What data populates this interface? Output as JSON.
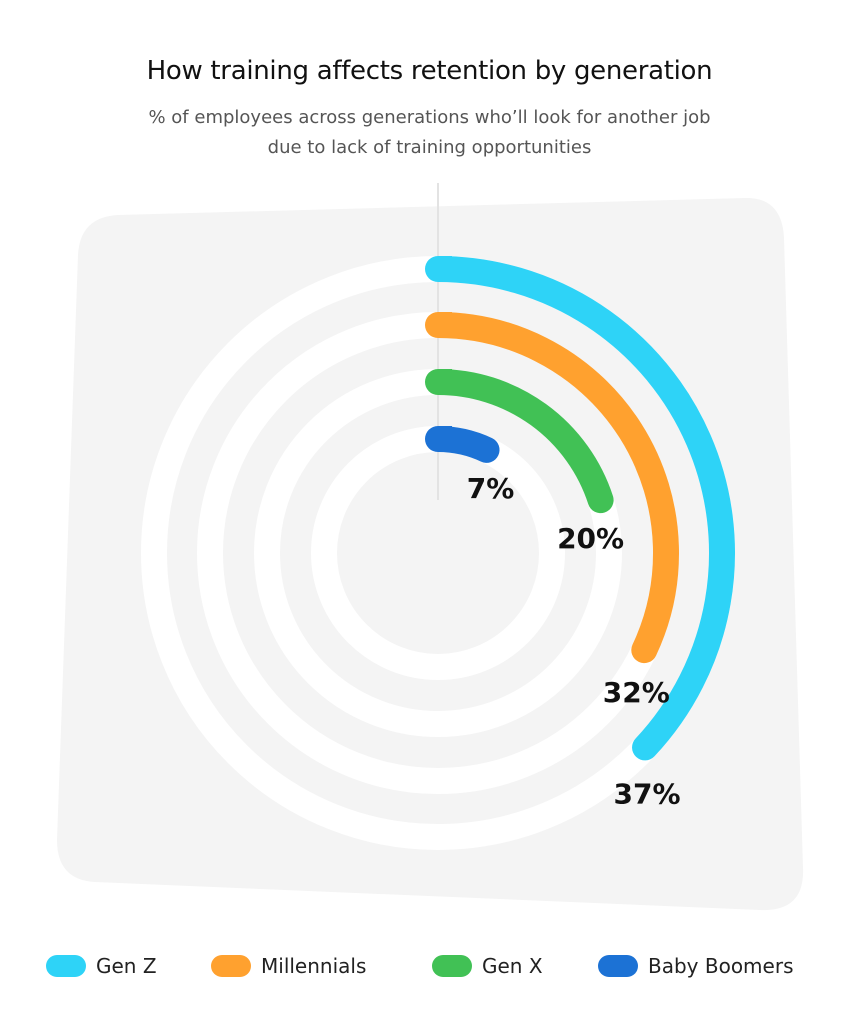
{
  "chart_data": {
    "type": "radial-bar",
    "title": "How training affects retention by generation",
    "subtitle": [
      "% of employees across generations who’ll look for another job",
      "due to lack of training opportunities"
    ],
    "unit": "%",
    "series": [
      {
        "name": "Gen Z",
        "value": 37,
        "label": "37%",
        "color": "#2ED3F7"
      },
      {
        "name": "Millennials",
        "value": 32,
        "label": "32%",
        "color": "#FFA12F"
      },
      {
        "name": "Gen X",
        "value": 20,
        "label": "20%",
        "color": "#41C155"
      },
      {
        "name": "Baby Boomers",
        "value": 7,
        "label": "7%",
        "color": "#1C72D5"
      }
    ],
    "legend_position": "bottom"
  },
  "colors": {
    "panel": "#F4F4F4",
    "track": "#FFFFFF"
  }
}
